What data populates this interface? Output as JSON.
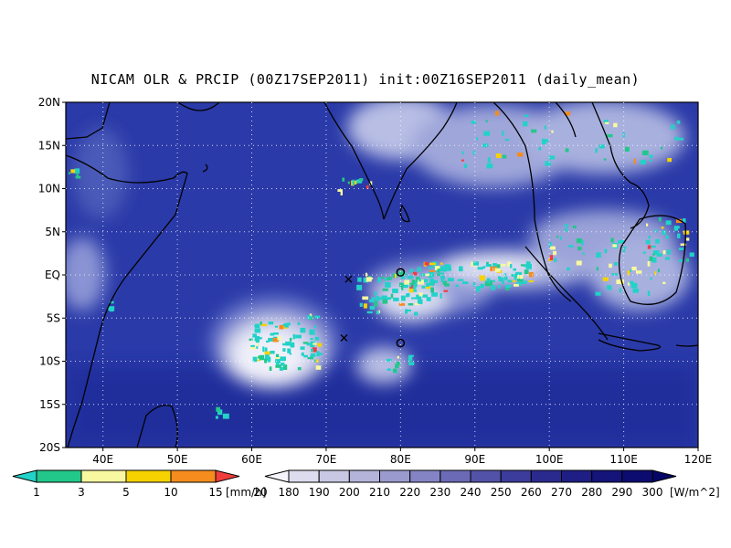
{
  "title": "NICAM OLR & PRCIP (00Z17SEP2011) init:00Z16SEP2011 (daily_mean)",
  "map": {
    "lon_range": [
      35,
      120
    ],
    "lat_range": [
      -20,
      20
    ],
    "lat_ticks": [
      "20N",
      "15N",
      "10N",
      "5N",
      "EQ",
      "5S",
      "10S",
      "15S",
      "20S"
    ],
    "lon_ticks": [
      "40E",
      "50E",
      "60E",
      "70E",
      "80E",
      "90E",
      "100E",
      "110E",
      "120E"
    ],
    "lon_tick_values": [
      40,
      50,
      60,
      70,
      80,
      90,
      100,
      110,
      120
    ],
    "lat_tick_values": [
      20,
      15,
      10,
      5,
      0,
      -5,
      -10,
      -15,
      -20
    ],
    "ocean_color": "#2a3aa8",
    "cloud_color": "#e8e8f4",
    "grid": true
  },
  "markers": [
    {
      "type": "x",
      "lon": 73,
      "lat": -0.5
    },
    {
      "type": "x",
      "lon": 72.4,
      "lat": -7.3
    },
    {
      "type": "o",
      "lon": 80,
      "lat": 0.3
    },
    {
      "type": "o",
      "lon": 80,
      "lat": -7.9
    }
  ],
  "precip_colorbar": {
    "labels": [
      "1",
      "3",
      "5",
      "10",
      "15",
      "20"
    ],
    "unit": "[mm/h]",
    "colors": [
      "#22d2c8",
      "#22c88a",
      "#f8f8a0",
      "#f5d200",
      "#f58c1e",
      "#f03c3c"
    ]
  },
  "olr_colorbar": {
    "labels": [
      "180",
      "190",
      "200",
      "210",
      "220",
      "230",
      "240",
      "250",
      "260",
      "270",
      "280",
      "290",
      "300"
    ],
    "unit": "[W/m^2]",
    "colors": [
      "#f4f4fa",
      "#dcdcee",
      "#c8c8e4",
      "#b4b4da",
      "#9a9ace",
      "#8484c4",
      "#6a6ab6",
      "#5252a8",
      "#3c3c9c",
      "#2a2a8e",
      "#1e1e84",
      "#14147a",
      "#0c0c70",
      "#060666"
    ]
  }
}
